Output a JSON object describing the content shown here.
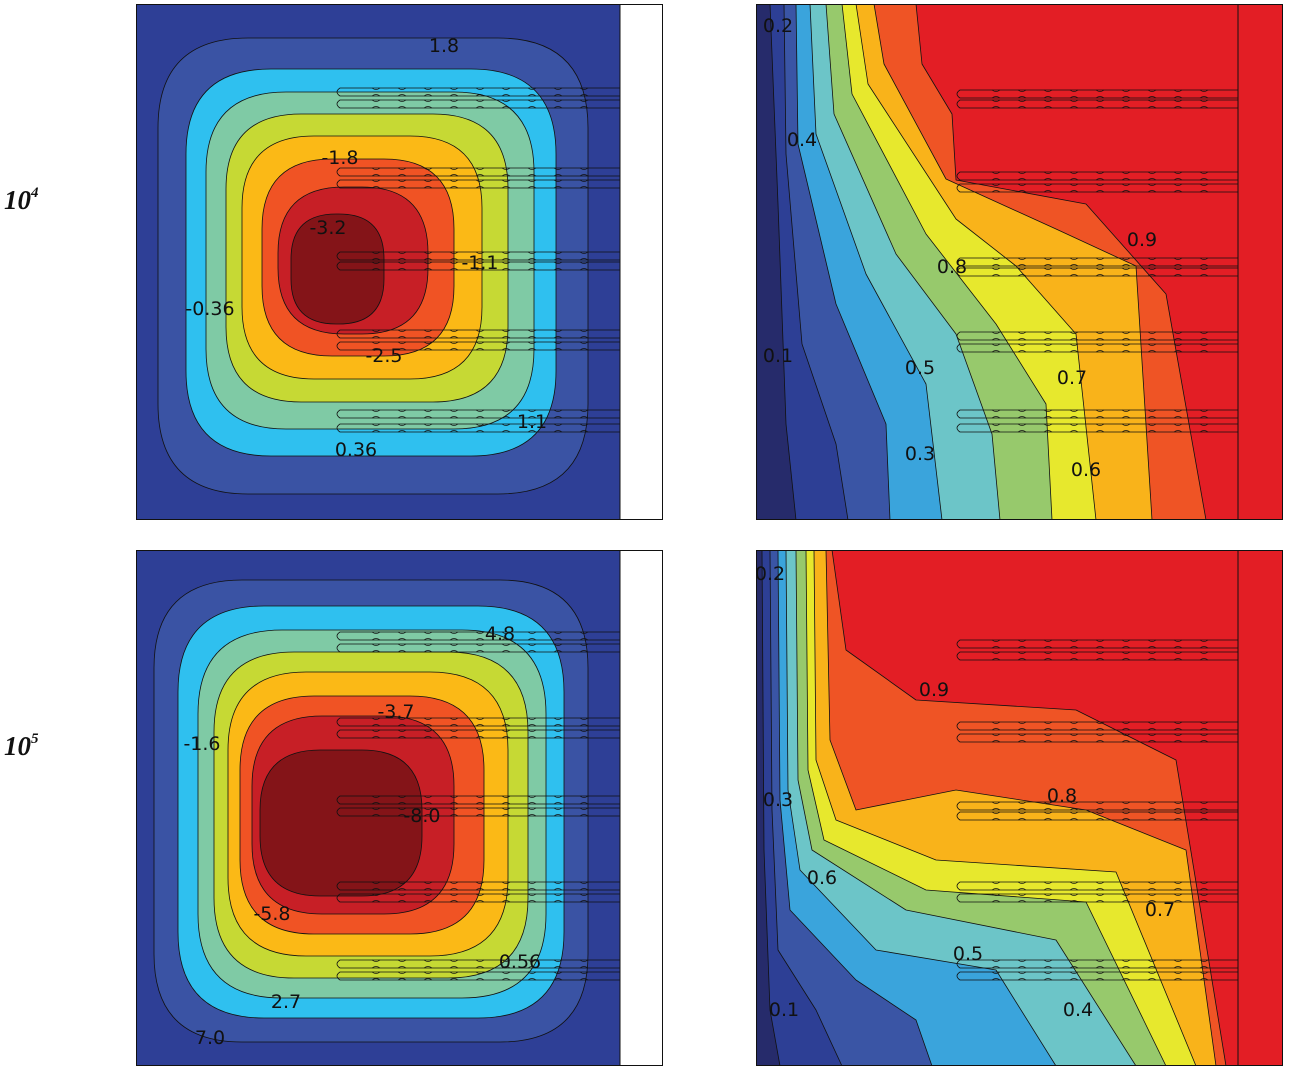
{
  "rows": [
    {
      "base": "10",
      "exponent": "4"
    },
    {
      "base": "10",
      "exponent": "5"
    }
  ],
  "colors": {
    "stream": [
      "#2e3f96",
      "#3a53a4",
      "#2fc0ef",
      "#7fcaa5",
      "#c6d934",
      "#fbb916",
      "#f05324",
      "#c71f26",
      "#841418"
    ],
    "temp": [
      "#262b6b",
      "#2d3f95",
      "#3a55a5",
      "#3aa4dc",
      "#6cc5c8",
      "#97c96c",
      "#e7e82d",
      "#f9b31a",
      "#ef5425",
      "#e31e25"
    ],
    "line": "#111111",
    "blank": "#ffffff"
  },
  "chart_data": [
    {
      "type": "contour",
      "field": "streamfunction",
      "row": "10^4",
      "labels": [
        {
          "text": "1.8"
        },
        {
          "text": "-1.8"
        },
        {
          "text": "-3.2"
        },
        {
          "text": "-1.1"
        },
        {
          "text": "-0.36"
        },
        {
          "text": "-2.5"
        },
        {
          "text": "1.1"
        },
        {
          "text": "0.36"
        }
      ]
    },
    {
      "type": "contour",
      "field": "temperature",
      "row": "10^4",
      "labels": [
        {
          "text": "0.2"
        },
        {
          "text": "0.4"
        },
        {
          "text": "0.9"
        },
        {
          "text": "0.8"
        },
        {
          "text": "0.1"
        },
        {
          "text": "0.5"
        },
        {
          "text": "0.7"
        },
        {
          "text": "0.3"
        },
        {
          "text": "0.6"
        }
      ]
    },
    {
      "type": "contour",
      "field": "streamfunction",
      "row": "10^5",
      "labels": [
        {
          "text": "4.8"
        },
        {
          "text": "-3.7"
        },
        {
          "text": "-1.6"
        },
        {
          "text": "-8.0"
        },
        {
          "text": "-5.8"
        },
        {
          "text": "0.56"
        },
        {
          "text": "2.7"
        },
        {
          "text": "7.0"
        }
      ]
    },
    {
      "type": "contour",
      "field": "temperature",
      "row": "10^5",
      "labels": [
        {
          "text": "0.2"
        },
        {
          "text": "0.9"
        },
        {
          "text": "0.3"
        },
        {
          "text": "0.8"
        },
        {
          "text": "0.6"
        },
        {
          "text": "0.7"
        },
        {
          "text": "0.5"
        },
        {
          "text": "0.1"
        },
        {
          "text": "0.4"
        }
      ]
    }
  ]
}
